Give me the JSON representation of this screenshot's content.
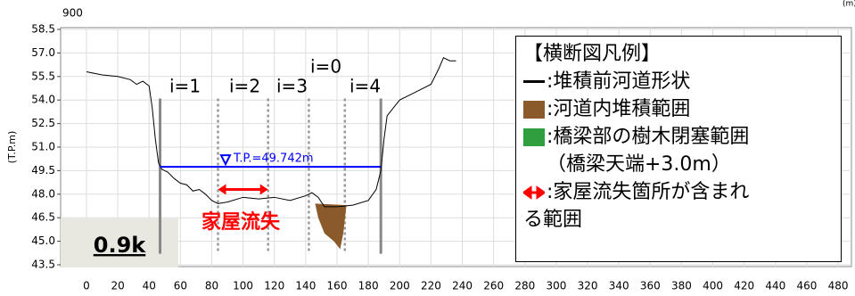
{
  "chart_data": {
    "type": "line",
    "top_label": "900",
    "ylabel": "(T.P.m)",
    "xlabel": "(m)",
    "xlim": [
      -16.5,
      488.5
    ],
    "ylim": [
      43.5,
      58.5
    ],
    "xticks": [
      0,
      20,
      40,
      60,
      80,
      100,
      120,
      140,
      160,
      180,
      200,
      220,
      240,
      260,
      280,
      300,
      320,
      340,
      360,
      380,
      400,
      420,
      440,
      460,
      480
    ],
    "yticks": [
      43.5,
      {
        "value": 45,
        "label": "45.0"
      },
      46.5,
      {
        "value": 48,
        "label": "48.0"
      },
      49.5,
      {
        "value": 51,
        "label": "51.0"
      },
      52.5,
      {
        "value": 54,
        "label": "54.0"
      },
      55.5,
      {
        "value": 57,
        "label": "57.0"
      },
      58.5
    ],
    "grid": true,
    "series": [
      {
        "color": "#000000",
        "x": [
          0,
          10,
          20,
          28,
          32,
          36,
          40,
          42,
          44,
          46,
          48,
          52,
          56,
          60,
          64,
          68,
          72,
          76,
          80,
          84,
          90,
          100,
          110,
          120,
          130,
          140,
          144,
          148,
          152,
          160,
          170,
          180,
          185,
          188,
          190,
          192,
          200,
          210,
          220,
          225,
          228,
          232,
          236
        ],
        "values": [
          55.8,
          55.6,
          55.5,
          55.3,
          55.0,
          55.2,
          54.9,
          53.5,
          51.5,
          50.0,
          49.6,
          49.4,
          49.0,
          48.7,
          48.6,
          48.2,
          48.3,
          48.0,
          47.6,
          47.4,
          47.5,
          47.8,
          47.7,
          47.8,
          47.6,
          47.9,
          48.1,
          47.8,
          47.2,
          47.2,
          47.3,
          47.6,
          48.3,
          49.5,
          51.5,
          53.0,
          54.0,
          54.5,
          55.0,
          56.0,
          56.7,
          56.5,
          56.5
        ]
      }
    ],
    "deposit": {
      "color": "#8b5a2b",
      "x": [
        146,
        166,
        164,
        162,
        158,
        152,
        148
      ],
      "values": [
        47.4,
        47.3,
        45.5,
        44.5,
        45.0,
        45.5,
        46.5
      ]
    },
    "water": {
      "label": "T.P.=49.742m",
      "value": 49.742,
      "x": [
        47,
        188
      ],
      "color": "#0000ff"
    },
    "sections": [
      {
        "label": "i=1",
        "x": 47,
        "style": "solid"
      },
      {
        "label": "i=2",
        "x": 84,
        "style": "dotted"
      },
      {
        "label": "i=3",
        "x": 116,
        "style": "dotted"
      },
      {
        "label": "i=0",
        "x": 142,
        "style": "dotted"
      },
      {
        "label": null,
        "x": 165,
        "style": "dotted"
      },
      {
        "label": "i=4",
        "x": 188,
        "style": "solid"
      }
    ],
    "loss": {
      "label": "家屋流失",
      "x": [
        84,
        116
      ],
      "value": 48.3,
      "color": "#ff0000"
    },
    "station": "0.9k",
    "legend": {
      "title": "【横断図凡例】",
      "items": [
        ":堆積前河道形状",
        ":河道内堆積範囲",
        ":橋梁部の樹木閉塞範囲",
        "（橋梁天端+3.0m）",
        ":家屋流失箇所が含まれ",
        "る範囲"
      ]
    }
  }
}
